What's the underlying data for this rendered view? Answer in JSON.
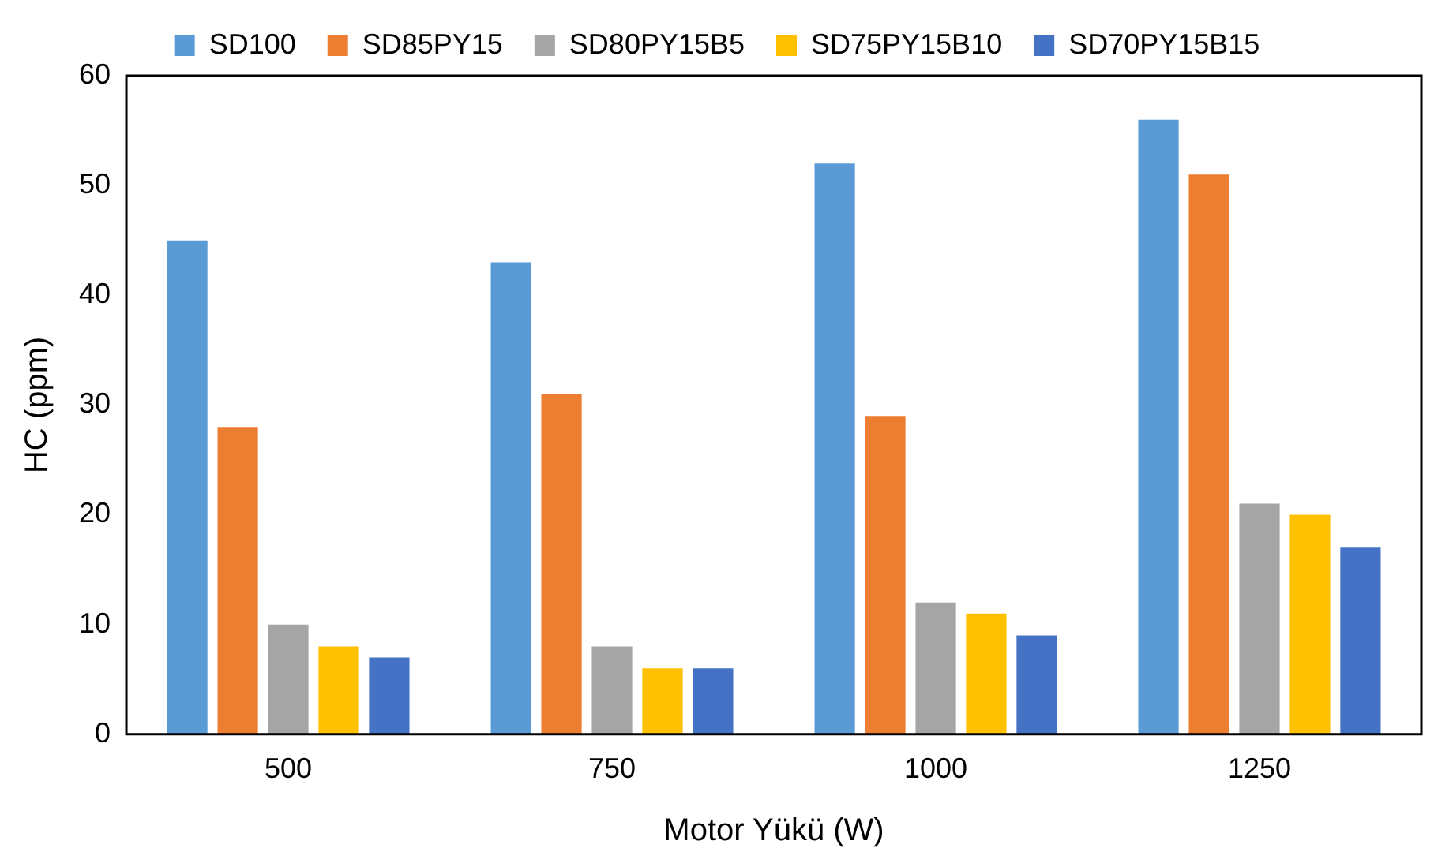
{
  "chart_data": {
    "type": "bar",
    "xlabel": "Motor Yükü (W)",
    "ylabel": "HC (ppm)",
    "categories": [
      "500",
      "750",
      "1000",
      "1250"
    ],
    "series": [
      {
        "name": "SD100",
        "color": "#5b9bd5",
        "values": [
          45,
          43,
          52,
          56
        ]
      },
      {
        "name": "SD85PY15",
        "color": "#ed7d31",
        "values": [
          28,
          31,
          29,
          51
        ]
      },
      {
        "name": "SD80PY15B5",
        "color": "#a5a5a5",
        "values": [
          10,
          8,
          12,
          21
        ]
      },
      {
        "name": "SD75PY15B10",
        "color": "#ffc000",
        "values": [
          8,
          6,
          11,
          20
        ]
      },
      {
        "name": "SD70PY15B15",
        "color": "#4472c4",
        "values": [
          7,
          6,
          9,
          17
        ]
      }
    ],
    "ylim": [
      0,
      60
    ],
    "yticks": [
      0,
      10,
      20,
      30,
      40,
      50,
      60
    ],
    "grid": false,
    "legend": "top"
  }
}
